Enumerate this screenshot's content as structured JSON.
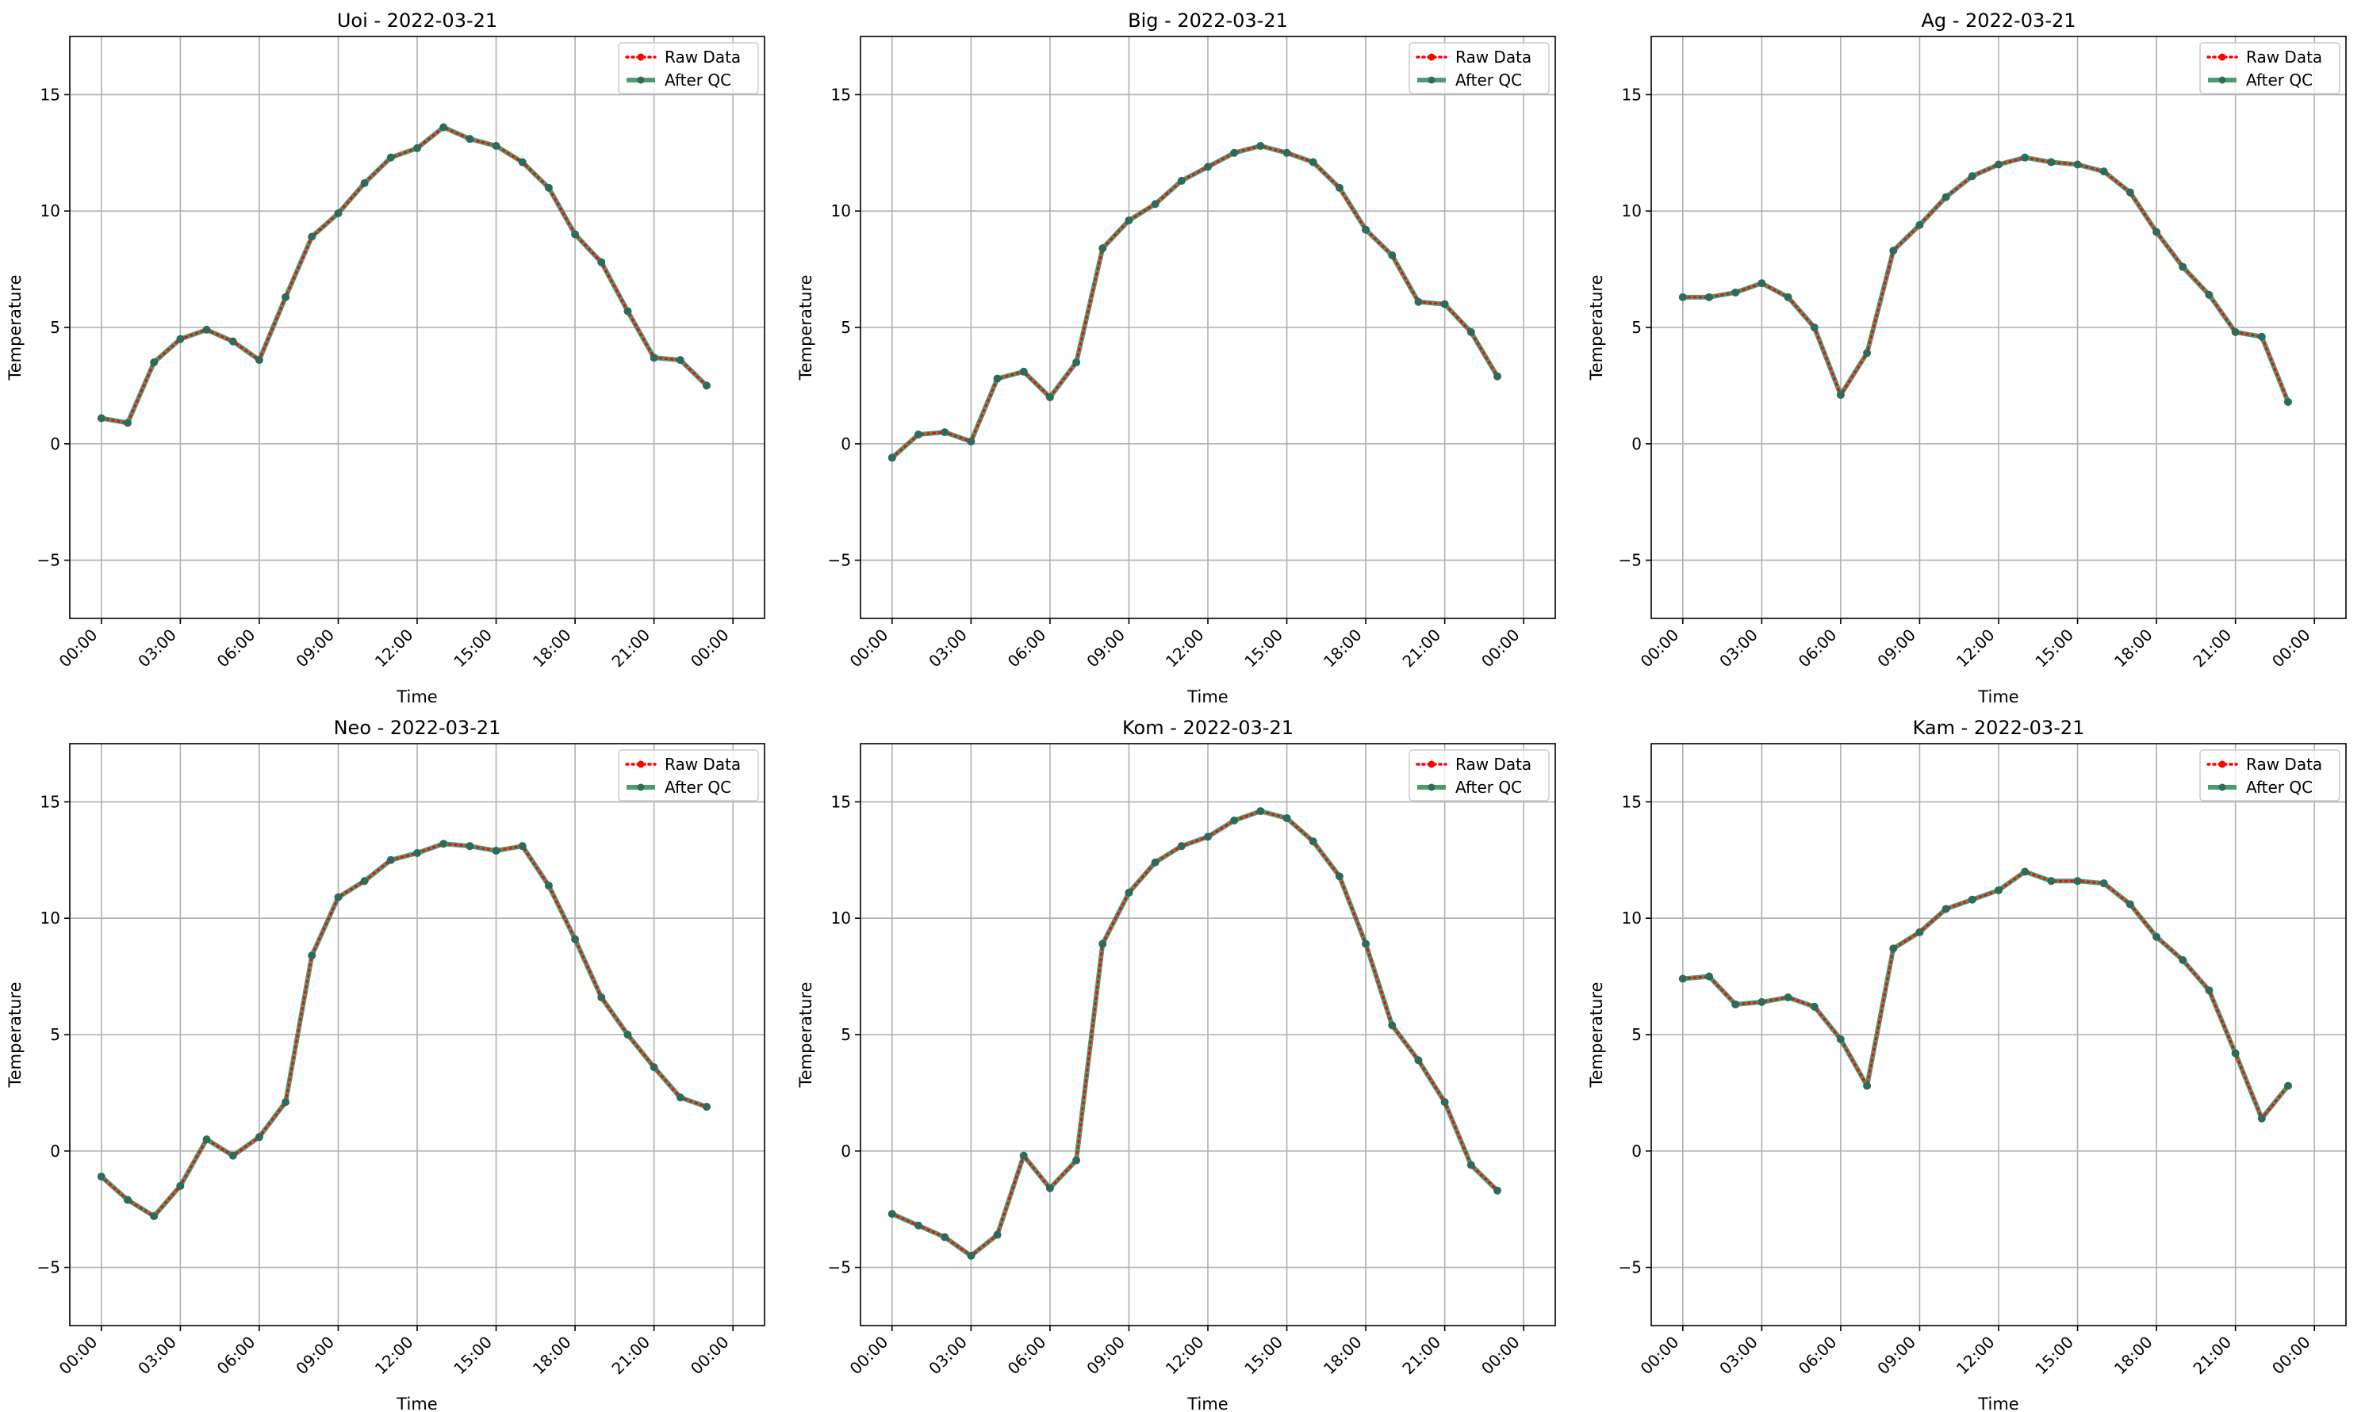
{
  "figure": {
    "background": "#ffffff",
    "grid_color": "#b0b0b0",
    "axis_color": "#000000"
  },
  "legend": {
    "placement": "top-right",
    "raw_label": "Raw Data",
    "qc_label": "After QC",
    "raw_color": "#ff0000",
    "qc_color": "#2e8b57",
    "qc_marker_color": "#2e6b5a"
  },
  "chart_data": [
    {
      "type": "line",
      "title": "Uoi - 2022-03-21",
      "xlabel": "Time",
      "ylabel": "Temperature",
      "x": [
        "00:00",
        "01:00",
        "02:00",
        "03:00",
        "04:00",
        "05:00",
        "06:00",
        "07:00",
        "08:00",
        "09:00",
        "10:00",
        "11:00",
        "12:00",
        "13:00",
        "14:00",
        "15:00",
        "16:00",
        "17:00",
        "18:00",
        "19:00",
        "20:00",
        "21:00",
        "22:00",
        "23:00"
      ],
      "xticks": [
        "00:00",
        "03:00",
        "06:00",
        "09:00",
        "12:00",
        "15:00",
        "18:00",
        "21:00",
        "00:00"
      ],
      "yticks": [
        -5,
        0,
        5,
        10,
        15
      ],
      "ylim": [
        -7.5,
        17.5
      ],
      "grid": true,
      "series": [
        {
          "name": "Raw Data",
          "values": [
            1.1,
            0.9,
            3.5,
            4.5,
            4.9,
            4.4,
            3.6,
            6.3,
            8.9,
            9.9,
            11.2,
            12.3,
            12.7,
            13.6,
            13.1,
            12.8,
            12.1,
            11.0,
            9.0,
            7.8,
            5.7,
            3.7,
            3.6,
            2.5
          ]
        },
        {
          "name": "After QC",
          "values": [
            1.1,
            0.9,
            3.5,
            4.5,
            4.9,
            4.4,
            3.6,
            6.3,
            8.9,
            9.9,
            11.2,
            12.3,
            12.7,
            13.6,
            13.1,
            12.8,
            12.1,
            11.0,
            9.0,
            7.8,
            5.7,
            3.7,
            3.6,
            2.5
          ]
        }
      ]
    },
    {
      "type": "line",
      "title": "Big - 2022-03-21",
      "xlabel": "Time",
      "ylabel": "Temperature",
      "x": [
        "00:00",
        "01:00",
        "02:00",
        "03:00",
        "04:00",
        "05:00",
        "06:00",
        "07:00",
        "08:00",
        "09:00",
        "10:00",
        "11:00",
        "12:00",
        "13:00",
        "14:00",
        "15:00",
        "16:00",
        "17:00",
        "18:00",
        "19:00",
        "20:00",
        "21:00",
        "22:00",
        "23:00"
      ],
      "xticks": [
        "00:00",
        "03:00",
        "06:00",
        "09:00",
        "12:00",
        "15:00",
        "18:00",
        "21:00",
        "00:00"
      ],
      "yticks": [
        -5,
        0,
        5,
        10,
        15
      ],
      "ylim": [
        -7.5,
        17.5
      ],
      "grid": true,
      "series": [
        {
          "name": "Raw Data",
          "values": [
            -0.6,
            0.4,
            0.5,
            0.1,
            2.8,
            3.1,
            2.0,
            3.5,
            8.4,
            9.6,
            10.3,
            11.3,
            11.9,
            12.5,
            12.8,
            12.5,
            12.1,
            11.0,
            9.2,
            8.1,
            6.1,
            6.0,
            4.8,
            2.9
          ]
        },
        {
          "name": "After QC",
          "values": [
            -0.6,
            0.4,
            0.5,
            0.1,
            2.8,
            3.1,
            2.0,
            3.5,
            8.4,
            9.6,
            10.3,
            11.3,
            11.9,
            12.5,
            12.8,
            12.5,
            12.1,
            11.0,
            9.2,
            8.1,
            6.1,
            6.0,
            4.8,
            2.9
          ]
        }
      ]
    },
    {
      "type": "line",
      "title": "Ag - 2022-03-21",
      "xlabel": "Time",
      "ylabel": "Temperature",
      "x": [
        "00:00",
        "01:00",
        "02:00",
        "03:00",
        "04:00",
        "05:00",
        "06:00",
        "07:00",
        "08:00",
        "09:00",
        "10:00",
        "11:00",
        "12:00",
        "13:00",
        "14:00",
        "15:00",
        "16:00",
        "17:00",
        "18:00",
        "19:00",
        "20:00",
        "21:00",
        "22:00",
        "23:00"
      ],
      "xticks": [
        "00:00",
        "03:00",
        "06:00",
        "09:00",
        "12:00",
        "15:00",
        "18:00",
        "21:00",
        "00:00"
      ],
      "yticks": [
        -5,
        0,
        5,
        10,
        15
      ],
      "ylim": [
        -7.5,
        17.5
      ],
      "grid": true,
      "series": [
        {
          "name": "Raw Data",
          "values": [
            6.3,
            6.3,
            6.5,
            6.9,
            6.3,
            5.0,
            2.1,
            3.9,
            8.3,
            9.4,
            10.6,
            11.5,
            12.0,
            12.3,
            12.1,
            12.0,
            11.7,
            10.8,
            9.1,
            7.6,
            6.4,
            4.8,
            4.6,
            1.8
          ]
        },
        {
          "name": "After QC",
          "values": [
            6.3,
            6.3,
            6.5,
            6.9,
            6.3,
            5.0,
            2.1,
            3.9,
            8.3,
            9.4,
            10.6,
            11.5,
            12.0,
            12.3,
            12.1,
            12.0,
            11.7,
            10.8,
            9.1,
            7.6,
            6.4,
            4.8,
            4.6,
            1.8
          ]
        }
      ]
    },
    {
      "type": "line",
      "title": "Neo - 2022-03-21",
      "xlabel": "Time",
      "ylabel": "Temperature",
      "x": [
        "00:00",
        "01:00",
        "02:00",
        "03:00",
        "04:00",
        "05:00",
        "06:00",
        "07:00",
        "08:00",
        "09:00",
        "10:00",
        "11:00",
        "12:00",
        "13:00",
        "14:00",
        "15:00",
        "16:00",
        "17:00",
        "18:00",
        "19:00",
        "20:00",
        "21:00",
        "22:00",
        "23:00"
      ],
      "xticks": [
        "00:00",
        "03:00",
        "06:00",
        "09:00",
        "12:00",
        "15:00",
        "18:00",
        "21:00",
        "00:00"
      ],
      "yticks": [
        -5,
        0,
        5,
        10,
        15
      ],
      "ylim": [
        -7.5,
        17.5
      ],
      "grid": true,
      "series": [
        {
          "name": "Raw Data",
          "values": [
            -1.1,
            -2.1,
            -2.8,
            -1.5,
            0.5,
            -0.2,
            0.6,
            2.1,
            8.4,
            10.9,
            11.6,
            12.5,
            12.8,
            13.2,
            13.1,
            12.9,
            13.1,
            11.4,
            9.1,
            6.6,
            5.0,
            3.6,
            2.3,
            1.9
          ]
        },
        {
          "name": "After QC",
          "values": [
            -1.1,
            -2.1,
            -2.8,
            -1.5,
            0.5,
            -0.2,
            0.6,
            2.1,
            8.4,
            10.9,
            11.6,
            12.5,
            12.8,
            13.2,
            13.1,
            12.9,
            13.1,
            11.4,
            9.1,
            6.6,
            5.0,
            3.6,
            2.3,
            1.9
          ]
        }
      ]
    },
    {
      "type": "line",
      "title": "Kom - 2022-03-21",
      "xlabel": "Time",
      "ylabel": "Temperature",
      "x": [
        "00:00",
        "01:00",
        "02:00",
        "03:00",
        "04:00",
        "05:00",
        "06:00",
        "07:00",
        "08:00",
        "09:00",
        "10:00",
        "11:00",
        "12:00",
        "13:00",
        "14:00",
        "15:00",
        "16:00",
        "17:00",
        "18:00",
        "19:00",
        "20:00",
        "21:00",
        "22:00",
        "23:00"
      ],
      "xticks": [
        "00:00",
        "03:00",
        "06:00",
        "09:00",
        "12:00",
        "15:00",
        "18:00",
        "21:00",
        "00:00"
      ],
      "yticks": [
        -5,
        0,
        5,
        10,
        15
      ],
      "ylim": [
        -7.5,
        17.5
      ],
      "grid": true,
      "series": [
        {
          "name": "Raw Data",
          "values": [
            -2.7,
            -3.2,
            -3.7,
            -4.5,
            -3.6,
            -0.2,
            -1.6,
            -0.4,
            8.9,
            11.1,
            12.4,
            13.1,
            13.5,
            14.2,
            14.6,
            14.3,
            13.3,
            11.8,
            8.9,
            5.4,
            3.9,
            2.1,
            -0.6,
            -1.7
          ]
        },
        {
          "name": "After QC",
          "values": [
            -2.7,
            -3.2,
            -3.7,
            -4.5,
            -3.6,
            -0.2,
            -1.6,
            -0.4,
            8.9,
            11.1,
            12.4,
            13.1,
            13.5,
            14.2,
            14.6,
            14.3,
            13.3,
            11.8,
            8.9,
            5.4,
            3.9,
            2.1,
            -0.6,
            -1.7
          ]
        }
      ]
    },
    {
      "type": "line",
      "title": "Kam - 2022-03-21",
      "xlabel": "Time",
      "ylabel": "Temperature",
      "x": [
        "00:00",
        "01:00",
        "02:00",
        "03:00",
        "04:00",
        "05:00",
        "06:00",
        "07:00",
        "08:00",
        "09:00",
        "10:00",
        "11:00",
        "12:00",
        "13:00",
        "14:00",
        "15:00",
        "16:00",
        "17:00",
        "18:00",
        "19:00",
        "20:00",
        "21:00",
        "22:00",
        "23:00"
      ],
      "xticks": [
        "00:00",
        "03:00",
        "06:00",
        "09:00",
        "12:00",
        "15:00",
        "18:00",
        "21:00",
        "00:00"
      ],
      "yticks": [
        -5,
        0,
        5,
        10,
        15
      ],
      "ylim": [
        -7.5,
        17.5
      ],
      "grid": true,
      "series": [
        {
          "name": "Raw Data",
          "values": [
            7.4,
            7.5,
            6.3,
            6.4,
            6.6,
            6.2,
            4.8,
            2.8,
            8.7,
            9.4,
            10.4,
            10.8,
            11.2,
            12.0,
            11.6,
            11.6,
            11.5,
            10.6,
            9.2,
            8.2,
            6.9,
            4.2,
            1.4,
            2.8
          ]
        },
        {
          "name": "After QC",
          "values": [
            7.4,
            7.5,
            6.3,
            6.4,
            6.6,
            6.2,
            4.8,
            2.8,
            8.7,
            9.4,
            10.4,
            10.8,
            11.2,
            12.0,
            11.6,
            11.6,
            11.5,
            10.6,
            9.2,
            8.2,
            6.9,
            4.2,
            1.4,
            2.8
          ]
        }
      ]
    }
  ]
}
